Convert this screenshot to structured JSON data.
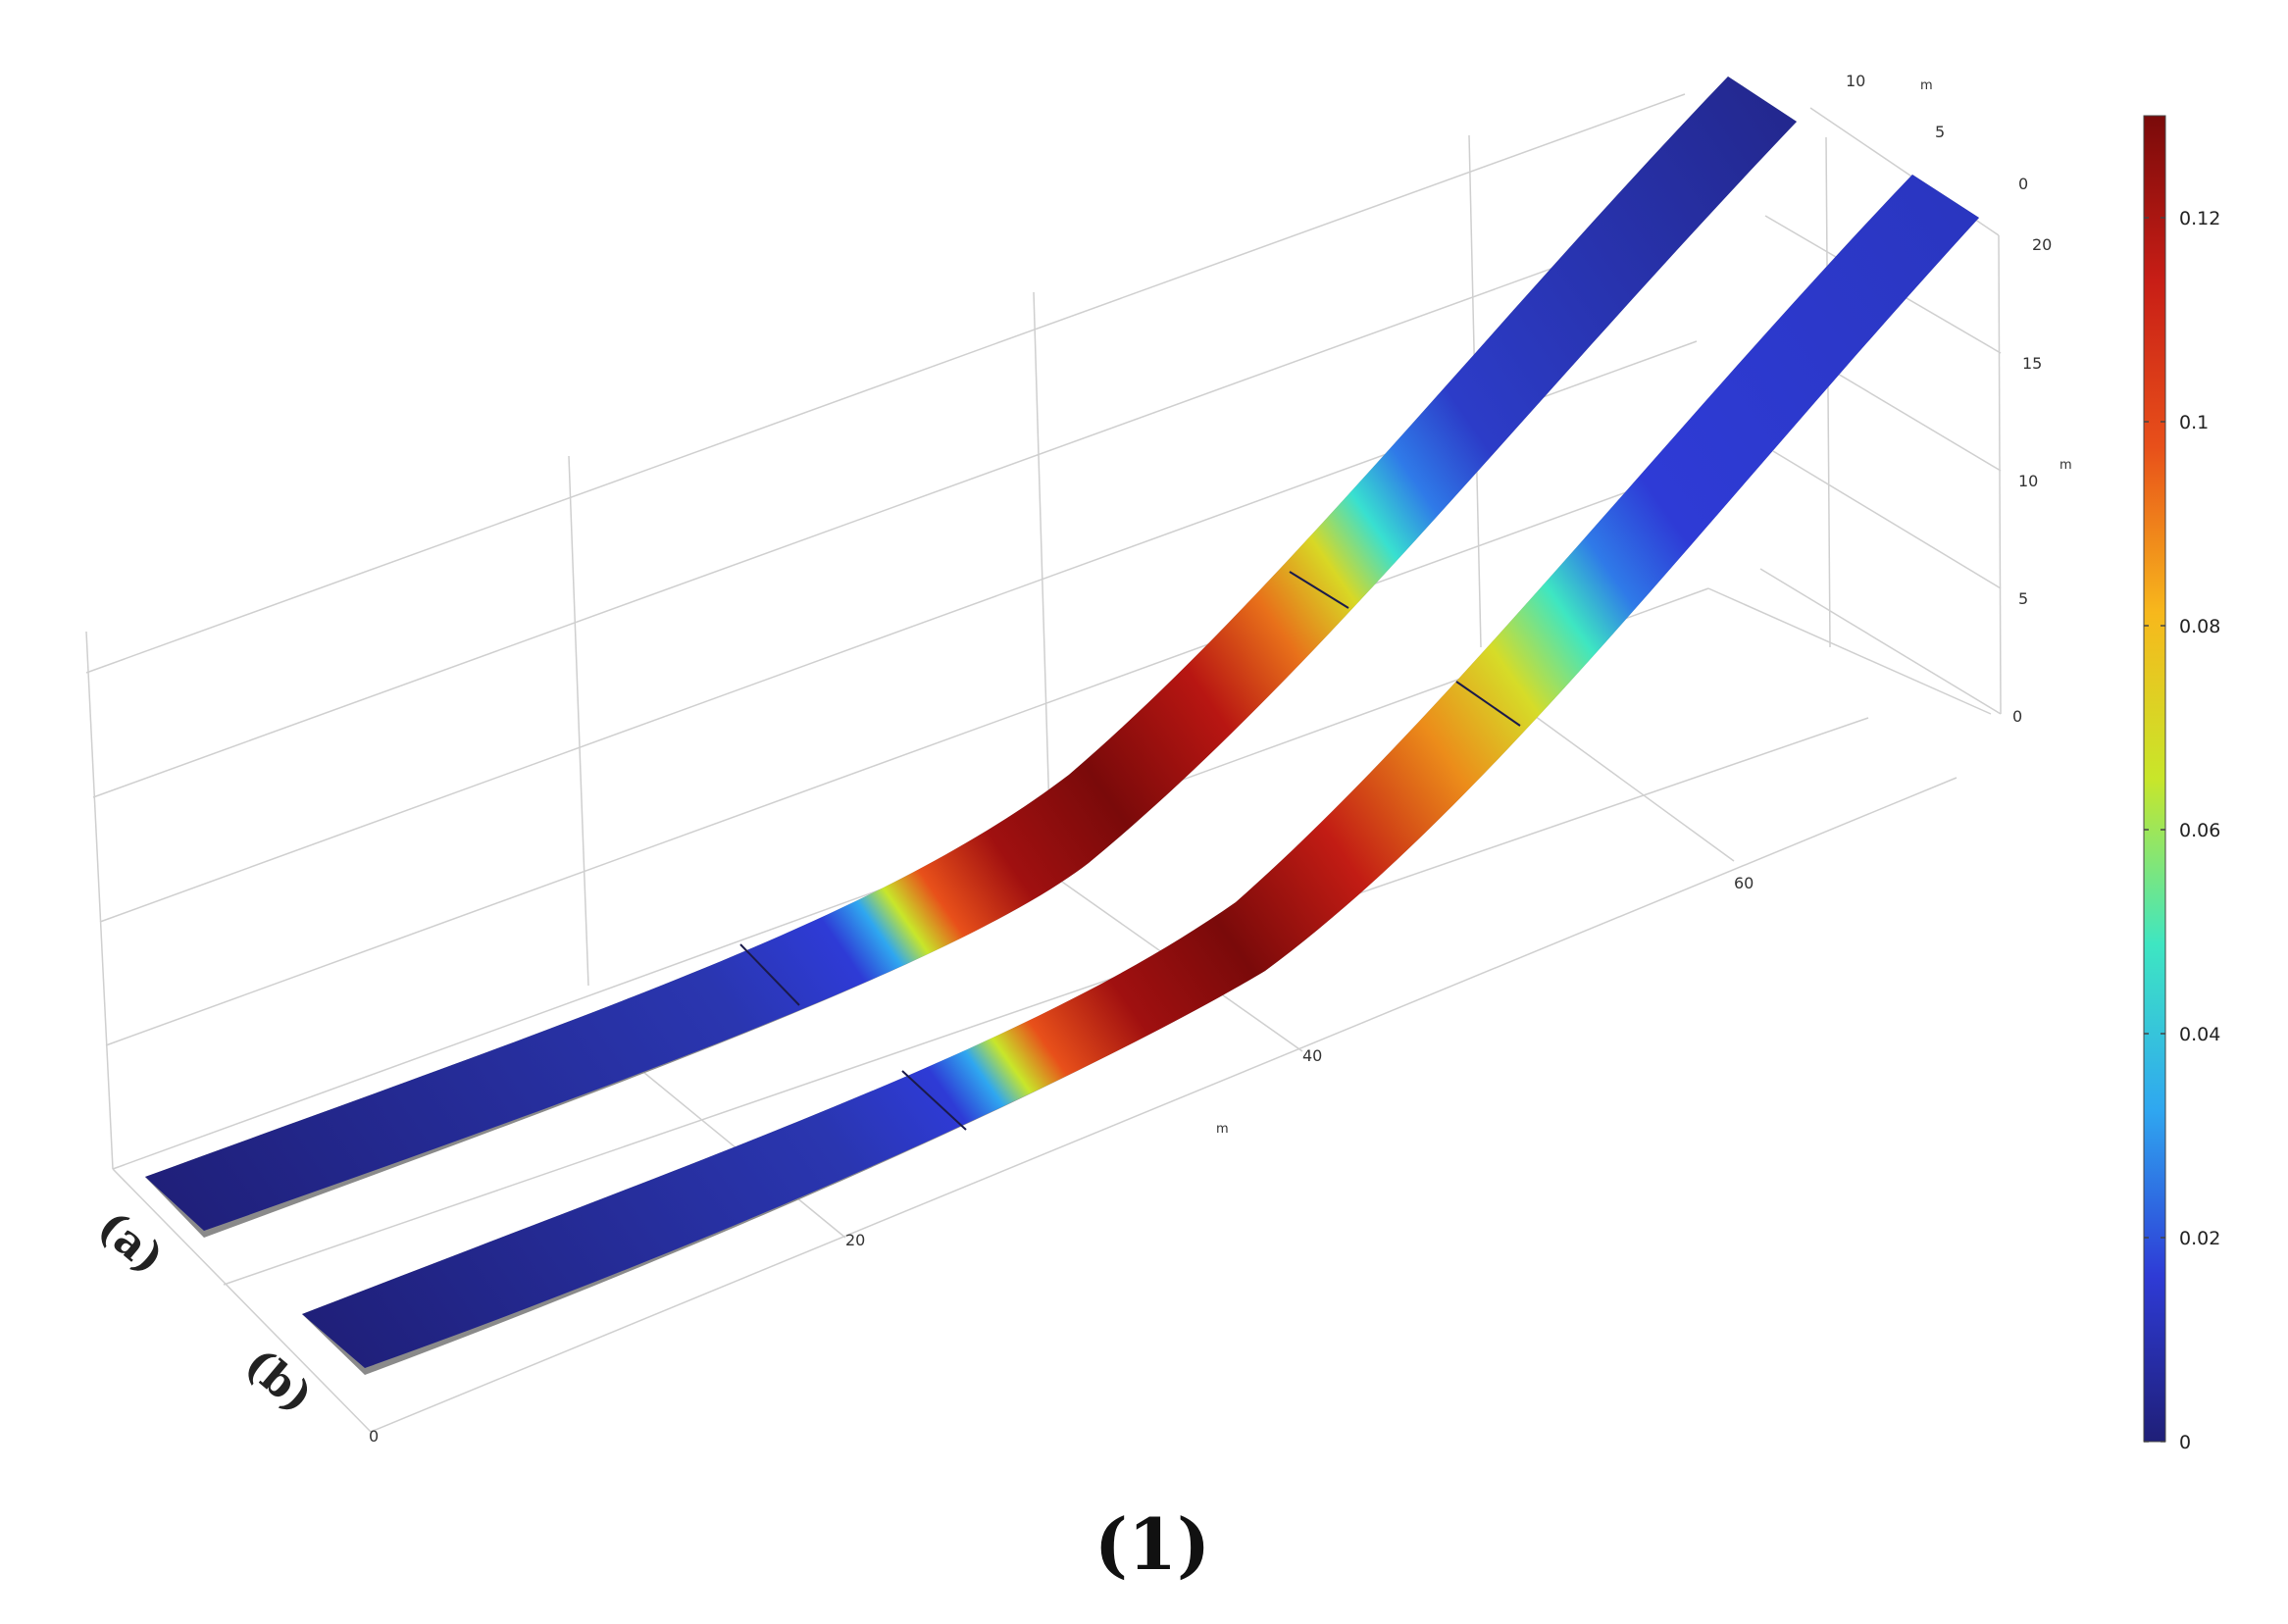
{
  "figure": {
    "caption": "(1)",
    "strip_labels": [
      "(a)",
      "(b)"
    ]
  },
  "axes": {
    "x": {
      "unit": "m",
      "ticks": [
        "0",
        "20",
        "40",
        "60"
      ]
    },
    "y": {
      "unit": "m",
      "ticks": [
        "10",
        "5",
        "0"
      ]
    },
    "z": {
      "unit": "m",
      "ticks": [
        "20",
        "15",
        "10",
        "5",
        "0"
      ]
    }
  },
  "colorbar": {
    "colormap": "jet",
    "min": 0,
    "max": 0.13,
    "ticks": [
      "0.12",
      "0.1",
      "0.08",
      "0.06",
      "0.04",
      "0.02",
      "0"
    ],
    "colors": [
      "#1f1f78",
      "#2e3bd6",
      "#2fa7f0",
      "#3ee6c2",
      "#c8e62a",
      "#f7b81c",
      "#e8501a",
      "#c81e16",
      "#7a0a0a"
    ]
  },
  "chart_data": {
    "type": "surface",
    "value_range": [
      0,
      0.13
    ],
    "series": [
      {
        "name": "(a)",
        "peak_value": 0.13
      },
      {
        "name": "(b)",
        "peak_value": 0.13
      }
    ]
  }
}
